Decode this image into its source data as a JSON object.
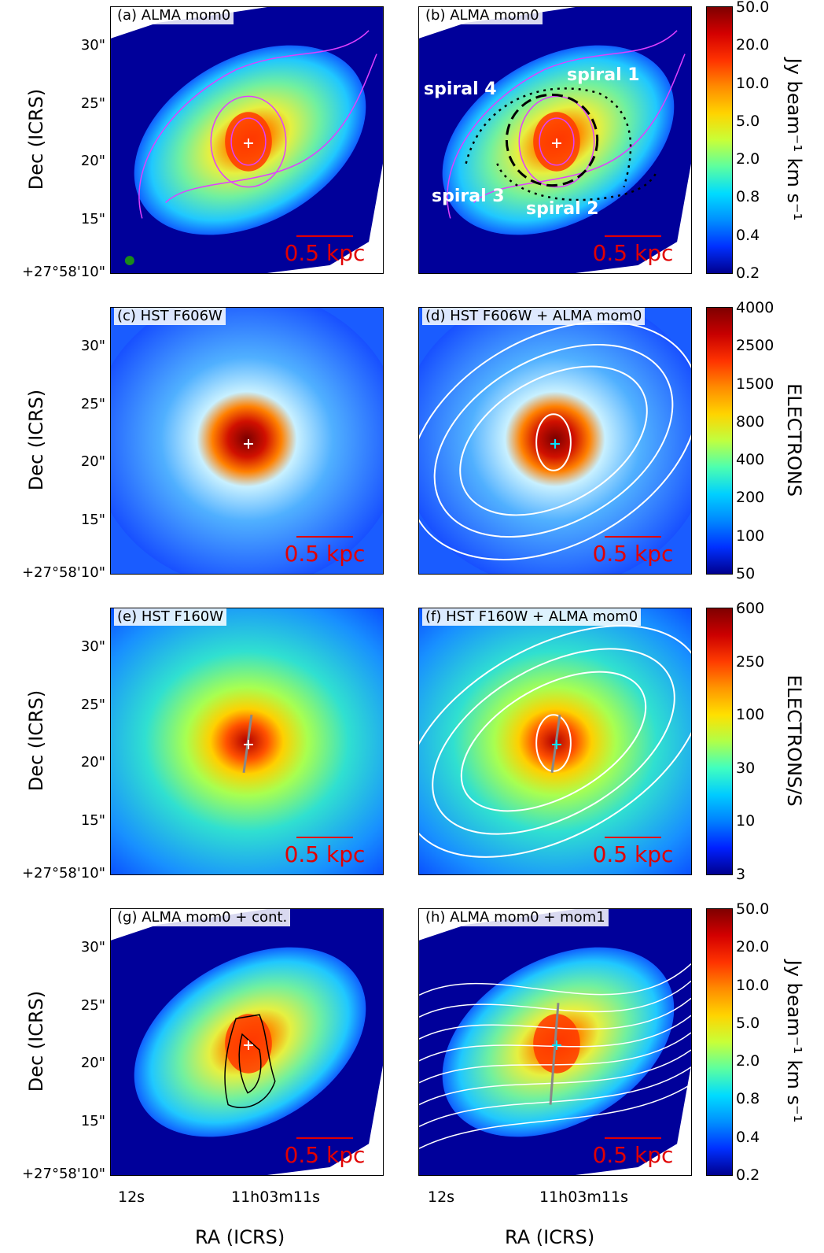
{
  "panels": [
    {
      "label": "(a) ALMA mom0",
      "type": "alma"
    },
    {
      "label": "(b) ALMA mom0",
      "type": "alma"
    },
    {
      "label": "(c) HST F606W",
      "type": "f606"
    },
    {
      "label": "(d) HST F606W + ALMA mom0",
      "type": "f606"
    },
    {
      "label": "(e) HST F160W",
      "type": "f160"
    },
    {
      "label": "(f) HST F160W + ALMA mom0",
      "type": "f160"
    },
    {
      "label": "(g) ALMA mom0 + cont.",
      "type": "alma2"
    },
    {
      "label": "(h) ALMA mom0 + mom1",
      "type": "alma2"
    }
  ],
  "scalebar": "0.5 kpc",
  "spirals": [
    "spiral 1",
    "spiral 2",
    "spiral 3",
    "spiral 4"
  ],
  "axes": {
    "ylabel": "Dec (ICRS)",
    "xlabel": "RA (ICRS)",
    "yticks": [
      "30\"",
      "25\"",
      "20\"",
      "15\"",
      "+27°58'10\""
    ],
    "xticks": [
      "12s",
      "11h03m11s"
    ]
  },
  "colorbars": [
    {
      "label": "Jy beam⁻¹ km s⁻¹",
      "ticks": [
        "50.0",
        "20.0",
        "10.0",
        "5.0",
        "2.0",
        "0.8",
        "0.4",
        "0.2"
      ]
    },
    {
      "label": "ELECTRONS",
      "ticks": [
        "4000",
        "2500",
        "1500",
        "800",
        "400",
        "200",
        "100",
        "50"
      ]
    },
    {
      "label": "ELECTRONS/S",
      "ticks": [
        "600",
        "250",
        "100",
        "30",
        "10",
        "3"
      ]
    },
    {
      "label": "Jy beam⁻¹ km s⁻¹",
      "ticks": [
        "50.0",
        "20.0",
        "10.0",
        "5.0",
        "2.0",
        "0.8",
        "0.4",
        "0.2"
      ]
    }
  ],
  "colors": {
    "scalebar": "#e10000",
    "contour_alma": "#e040ff",
    "contour_white": "#ffffff",
    "beam": "#1a8a1a"
  }
}
